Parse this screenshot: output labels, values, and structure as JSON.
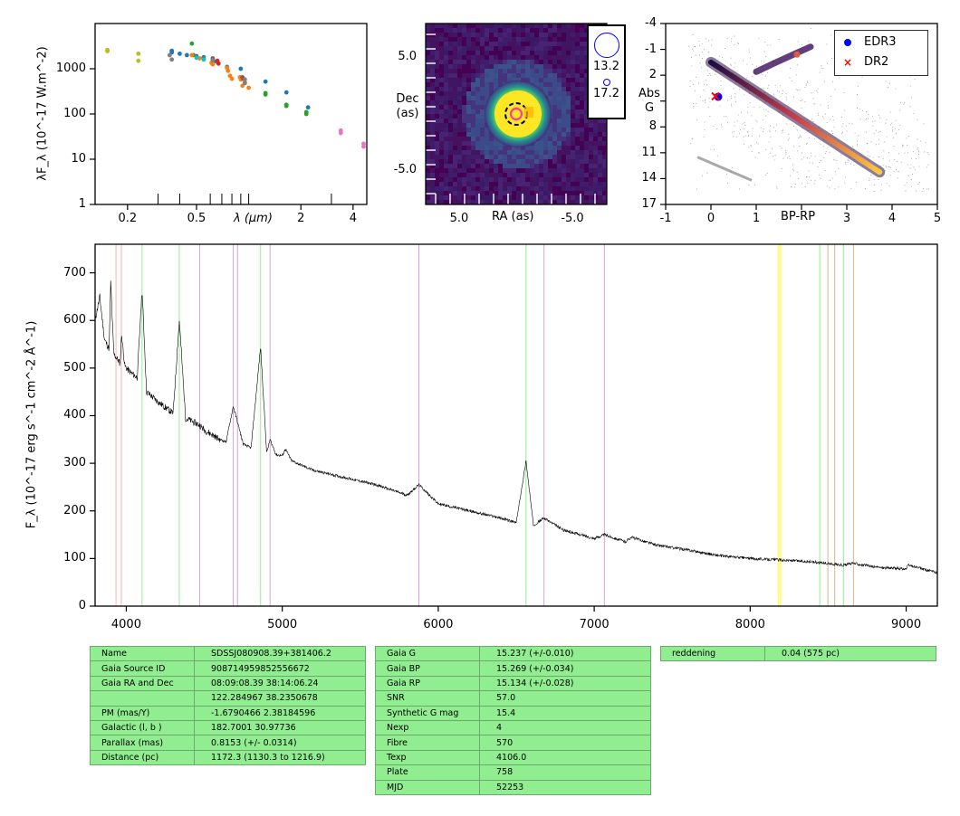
{
  "panels": {
    "sed": {
      "ylabel": "λF_λ (10^-17 W.m^-2)",
      "xlabel": "λ (μm)",
      "xticks": [
        "0.2",
        "0.5",
        "2",
        "4"
      ],
      "yticks": [
        "1",
        "10",
        "100",
        "1000"
      ]
    },
    "image": {
      "xlabel": "RA (as)",
      "ylabel": "Dec (as)",
      "xticks": [
        "5.0",
        "-5.0"
      ],
      "yticks": [
        "5.0",
        "-5.0"
      ],
      "legend_mags": [
        "13.2",
        "17.2"
      ]
    },
    "hrd": {
      "xlabel": "BP-RP",
      "ylabel": "Abs G",
      "xticks": [
        "-1",
        "0",
        "1",
        "3",
        "4",
        "5"
      ],
      "yticks": [
        "-4",
        "-1",
        "2",
        "5",
        "8",
        "11",
        "14",
        "17"
      ],
      "legend": [
        {
          "label": "EDR3",
          "marker": "circle",
          "color": "#0000ff"
        },
        {
          "label": "DR2",
          "marker": "cross",
          "color": "#ff0000"
        }
      ]
    },
    "spectrum": {
      "xticks": [
        "4000",
        "5000",
        "6000",
        "7000",
        "8000",
        "9000"
      ],
      "yticks": [
        "0",
        "100",
        "200",
        "300",
        "400",
        "500",
        "600",
        "700"
      ]
    }
  },
  "chart_data": [
    {
      "type": "scatter",
      "title": "",
      "xlabel": "λ (μm)",
      "ylabel": "λF_λ (10^-17 W.m^-2)",
      "xscale": "log",
      "yscale": "log",
      "xlim": [
        0.13,
        4.8
      ],
      "ylim": [
        1,
        10000
      ],
      "series": [
        {
          "color": "#bcbd22",
          "points": [
            [
              0.153,
              2600
            ],
            [
              0.153,
              2450
            ],
            [
              0.231,
              2150
            ],
            [
              0.231,
              1500
            ]
          ]
        },
        {
          "color": "#1f77b4",
          "points": [
            [
              0.36,
              2500
            ],
            [
              0.36,
              2300
            ],
            [
              0.4,
              2150
            ],
            [
              0.44,
              2000
            ],
            [
              0.5,
              1900
            ],
            [
              0.55,
              1800
            ],
            [
              0.62,
              1500
            ],
            [
              0.65,
              1450
            ],
            [
              0.75,
              1100
            ],
            [
              0.9,
              1000
            ],
            [
              1.25,
              520
            ],
            [
              1.65,
              300
            ],
            [
              2.2,
              140
            ]
          ]
        },
        {
          "color": "#2ca02c",
          "points": [
            [
              0.47,
              3600
            ],
            [
              0.48,
              2000
            ],
            [
              0.55,
              1650
            ],
            [
              0.62,
              1450
            ],
            [
              1.25,
              290
            ],
            [
              1.25,
              270
            ],
            [
              1.65,
              160
            ],
            [
              1.65,
              150
            ],
            [
              2.15,
              110
            ],
            [
              2.15,
              100
            ]
          ]
        },
        {
          "color": "#ff7f0e",
          "points": [
            [
              0.47,
              2000
            ],
            [
              0.52,
              1700
            ],
            [
              0.61,
              1350
            ],
            [
              0.62,
              1250
            ],
            [
              0.75,
              1050
            ],
            [
              0.76,
              900
            ],
            [
              0.78,
              700
            ],
            [
              0.8,
              600
            ],
            [
              0.89,
              650
            ],
            [
              0.9,
              580
            ],
            [
              0.95,
              500
            ],
            [
              1.0,
              380
            ],
            [
              0.92,
              420
            ]
          ]
        },
        {
          "color": "#d62728",
          "points": [
            [
              0.66,
              1500
            ],
            [
              0.67,
              1300
            ]
          ]
        },
        {
          "color": "#8c564b",
          "points": [
            [
              0.62,
              1700
            ],
            [
              0.92,
              650
            ],
            [
              0.93,
              600
            ]
          ]
        },
        {
          "color": "#7f7f7f",
          "points": [
            [
              0.35,
              2000
            ],
            [
              0.36,
              1600
            ],
            [
              0.62,
              1550
            ],
            [
              0.95,
              580
            ],
            [
              0.95,
              480
            ]
          ]
        },
        {
          "color": "#17becf",
          "points": [
            [
              0.5,
              1750
            ],
            [
              0.55,
              1600
            ]
          ]
        },
        {
          "color": "#e377c2",
          "points": [
            [
              3.4,
              43
            ],
            [
              3.4,
              38
            ],
            [
              4.6,
              22
            ],
            [
              4.6,
              19
            ]
          ]
        }
      ]
    },
    {
      "type": "heatmap",
      "title": "",
      "xlabel": "RA (as)",
      "ylabel": "Dec (as)",
      "xlim": [
        10.0,
        -7.5
      ],
      "ylim": [
        -7.5,
        10.0
      ],
      "source_center": [
        0.0,
        0.0
      ],
      "markers": [
        {
          "label": "13.2",
          "marker": "circle",
          "color": "#0000ff",
          "size": "large"
        },
        {
          "label": "17.2",
          "marker": "circle",
          "color": "#0000ff",
          "size": "small"
        }
      ]
    },
    {
      "type": "scatter",
      "title": "",
      "xlabel": "BP-RP",
      "ylabel": "Abs G",
      "xlim": [
        -1,
        5
      ],
      "ylim": [
        17,
        -4
      ],
      "series": [
        {
          "name": "EDR3",
          "marker": "circle",
          "color": "#0000ff",
          "points": [
            [
              0.16,
              4.5
            ]
          ]
        },
        {
          "name": "DR2",
          "marker": "cross",
          "color": "#ff0000",
          "points": [
            [
              0.1,
              4.45
            ]
          ]
        }
      ],
      "legend_position": "top-right"
    },
    {
      "type": "line",
      "title": "",
      "xlabel": "",
      "ylabel": "F_λ (10^-17 erg s^-1 cm^-2 Å^-1)",
      "xlim": [
        3800,
        9200
      ],
      "ylim": [
        0,
        760
      ],
      "x": [
        3800,
        3830,
        3860,
        3890,
        3900,
        3920,
        3940,
        3960,
        3970,
        3990,
        4000,
        4030,
        4070,
        4101,
        4130,
        4200,
        4260,
        4300,
        4340,
        4380,
        4471,
        4500,
        4600,
        4640,
        4686,
        4750,
        4800,
        4861,
        4900,
        4922,
        4960,
        5000,
        5020,
        5060,
        5200,
        5400,
        5600,
        5800,
        5876,
        6000,
        6200,
        6400,
        6500,
        6563,
        6610,
        6678,
        6800,
        7000,
        7065,
        7200,
        7236,
        7400,
        7600,
        7800,
        8000,
        8200,
        8400,
        8600,
        8665,
        8800,
        9000,
        9014,
        9200
      ],
      "y": [
        600,
        650,
        560,
        540,
        680,
        530,
        520,
        510,
        570,
        505,
        500,
        490,
        480,
        665,
        450,
        430,
        415,
        405,
        600,
        395,
        380,
        370,
        350,
        345,
        420,
        340,
        332,
        545,
        322,
        350,
        318,
        316,
        330,
        305,
        285,
        270,
        255,
        233,
        255,
        215,
        200,
        185,
        175,
        305,
        170,
        185,
        160,
        142,
        150,
        135,
        145,
        128,
        118,
        106,
        100,
        97,
        93,
        86,
        90,
        82,
        78,
        86,
        70
      ]
    }
  ],
  "spectrum_lines": [
    {
      "wavelength": 3934,
      "color": "#ffb0b0"
    },
    {
      "wavelength": 3968,
      "color": "#ffb0b0"
    },
    {
      "wavelength": 4101,
      "color": "#90ee90"
    },
    {
      "wavelength": 4340,
      "color": "#90ee90"
    },
    {
      "wavelength": 4471,
      "color": "#dda0dd"
    },
    {
      "wavelength": 4686,
      "color": "#dda0dd"
    },
    {
      "wavelength": 4713,
      "color": "#dda0dd"
    },
    {
      "wavelength": 4861,
      "color": "#90ee90"
    },
    {
      "wavelength": 4922,
      "color": "#dda0dd"
    },
    {
      "wavelength": 5876,
      "color": "#dda0dd"
    },
    {
      "wavelength": 6563,
      "color": "#90ee90"
    },
    {
      "wavelength": 6678,
      "color": "#dda0dd"
    },
    {
      "wavelength": 7065,
      "color": "#dda0dd"
    },
    {
      "wavelength": 8183,
      "color": "#ffff00"
    },
    {
      "wavelength": 8195,
      "color": "#ffff00"
    },
    {
      "wavelength": 8446,
      "color": "#90ee90"
    },
    {
      "wavelength": 8498,
      "color": "#d2b48c"
    },
    {
      "wavelength": 8542,
      "color": "#d2b48c"
    },
    {
      "wavelength": 8598,
      "color": "#90ee90"
    },
    {
      "wavelength": 8662,
      "color": "#d2b48c"
    }
  ],
  "tables": {
    "left": [
      [
        "Name",
        "SDSSJ080908.39+381406.2"
      ],
      [
        "Gaia Source ID",
        "908714959852556672"
      ],
      [
        "Gaia RA and Dec",
        "08:09:08.39    38:14:06.24"
      ],
      [
        "",
        "122.284967    38.2350678"
      ],
      [
        "PM (mas/Y)",
        "-1.6790466    2.38184596"
      ],
      [
        "Galactic (l, b )",
        "182.7001    30.97736"
      ],
      [
        "Parallax (mas)",
        "0.8153 (+/- 0.0314)"
      ],
      [
        "Distance (pc)",
        "1172.3 (1130.3 to 1216.9)"
      ]
    ],
    "middle": [
      [
        "Gaia G",
        "15.237 (+/-0.010)"
      ],
      [
        "Gaia BP",
        "15.269 (+/-0.034)"
      ],
      [
        "Gaia RP",
        "15.134 (+/-0.028)"
      ],
      [
        "SNR",
        "57.0"
      ],
      [
        "Synthetic G mag",
        "15.4"
      ],
      [
        "Nexp",
        "4"
      ],
      [
        "Fibre",
        "570"
      ],
      [
        "Texp",
        "4106.0"
      ],
      [
        "Plate",
        "758"
      ],
      [
        "MJD",
        "52253"
      ]
    ],
    "right": [
      [
        "reddening",
        "0.04 (575 pc)"
      ]
    ]
  }
}
